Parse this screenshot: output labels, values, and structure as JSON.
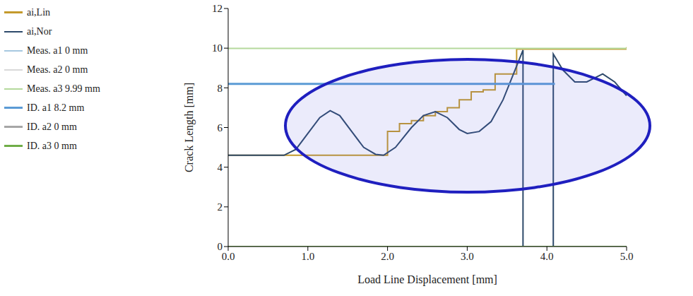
{
  "chart_data": {
    "type": "line",
    "x_label": "Load Line Displacement [mm]",
    "y_label": "Crack Length [mm]",
    "xlim": [
      0,
      5
    ],
    "xticks": [
      {
        "value": 0,
        "label": "0.0"
      },
      {
        "value": 1,
        "label": "1.0"
      },
      {
        "value": 2,
        "label": "2.0"
      },
      {
        "value": 3,
        "label": "3.0"
      },
      {
        "value": 4,
        "label": "4.0"
      },
      {
        "value": 5,
        "label": "5.0"
      }
    ],
    "ylim": [
      0,
      12
    ],
    "yticks": [
      0,
      2,
      4,
      6,
      8,
      10,
      12
    ],
    "grid": false,
    "legend": "left",
    "series": [
      {
        "name": "ai,Lin",
        "color": "#c49a2c",
        "line_style": "step",
        "x": [
          0,
          2.0,
          2.15,
          2.3,
          2.45,
          2.6,
          2.75,
          2.9,
          3.05,
          3.2,
          3.35,
          3.5,
          3.62,
          5.0
        ],
        "values": [
          4.6,
          5.8,
          6.2,
          6.35,
          6.6,
          6.8,
          7.0,
          7.4,
          7.8,
          7.9,
          8.7,
          8.7,
          9.95,
          10.05
        ]
      },
      {
        "name": "ai,Nor",
        "color": "#2e4a6b",
        "line_style": "solid",
        "x": [
          0,
          0.7,
          0.85,
          1.0,
          1.15,
          1.28,
          1.4,
          1.55,
          1.7,
          1.85,
          1.95,
          2.1,
          2.3,
          2.45,
          2.6,
          2.75,
          2.9,
          3.0,
          3.15,
          3.3,
          3.45,
          3.6,
          3.7,
          3.7,
          4.08,
          4.08,
          4.2,
          4.35,
          4.5,
          4.7,
          4.85,
          5.0
        ],
        "values": [
          4.6,
          4.6,
          4.9,
          5.7,
          6.5,
          6.85,
          6.6,
          5.8,
          5.0,
          4.65,
          4.6,
          5.0,
          6.0,
          6.6,
          6.8,
          6.5,
          5.9,
          5.7,
          5.8,
          6.3,
          7.4,
          8.9,
          9.9,
          0,
          0,
          9.7,
          8.9,
          8.3,
          8.3,
          8.7,
          8.3,
          7.6
        ]
      },
      {
        "name": "Meas. a1 0 mm",
        "color": "#a6c8e0",
        "line_style": "solid",
        "x": [
          0,
          5
        ],
        "values": [
          0,
          0
        ]
      },
      {
        "name": "Meas. a2 0 mm",
        "color": "#d9d9d9",
        "line_style": "solid",
        "x": [
          0,
          5
        ],
        "values": [
          0,
          0
        ]
      },
      {
        "name": "Meas. a3 9.99 mm",
        "color": "#b5d99c",
        "line_style": "solid",
        "x": [
          0,
          5
        ],
        "values": [
          9.99,
          9.99
        ]
      },
      {
        "name": "ID. a1 8.2 mm",
        "color": "#5b9bd5",
        "line_style": "solid",
        "x": [
          0,
          4.1
        ],
        "values": [
          8.2,
          8.2
        ]
      },
      {
        "name": "ID. a2 0 mm",
        "color": "#a6a6a6",
        "line_style": "solid",
        "x": [
          0,
          5
        ],
        "values": [
          0,
          0
        ]
      },
      {
        "name": "ID. a3 0 mm",
        "color": "#70ad47",
        "line_style": "solid",
        "x": [
          0,
          5
        ],
        "values": [
          0,
          0
        ]
      }
    ]
  }
}
